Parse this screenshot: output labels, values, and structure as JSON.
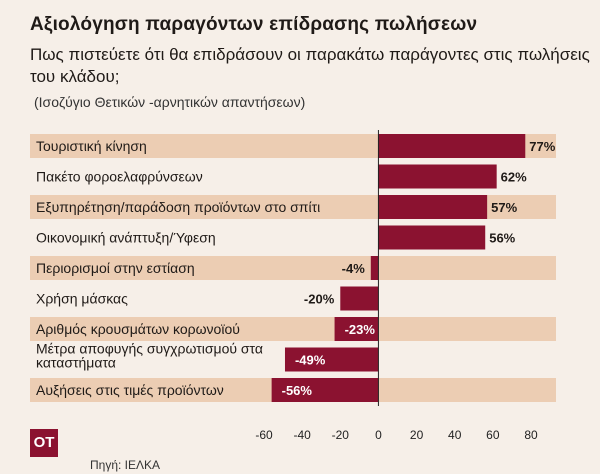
{
  "header": {
    "title": "Αξιολόγηση παραγόντων επίδρασης πωλήσεων",
    "subtitle": "Πως πιστεύετε ότι θα επιδράσουν οι παρακάτω παράγοντες στις πωλήσεις του κλάδου;",
    "note": "(Ισοζύγιο Θετικών -αρνητικών απαντήσεων)"
  },
  "footer": {
    "logo": "ΟΤ",
    "source": "Πηγή: ΙΕΛΚΑ"
  },
  "colors": {
    "bar": "#8b1230",
    "band": "#eccdb3",
    "background": "#f6efe8",
    "axis": "#222222"
  },
  "chart_data": {
    "type": "bar",
    "orientation": "horizontal",
    "categories": [
      "Τουριστική κίνηση",
      "Πακέτο φοροελαφρύνσεων",
      "Εξυπηρέτηση/παράδοση προϊόντων στο σπίτι",
      "Οικονομική ανάπτυξη/Ύφεση",
      "Περιορισμοί στην εστίαση",
      "Χρήση μάσκας",
      "Αριθμός κρουσμάτων κορωνοϊού",
      "Μέτρα αποφυγής συγχρωτισμού στα καταστήματα",
      "Αυξήσεις στις τιμές προϊόντων"
    ],
    "values": [
      77,
      62,
      57,
      56,
      -4,
      -20,
      -23,
      -49,
      -56
    ],
    "value_labels": [
      "77%",
      "62%",
      "57%",
      "56%",
      "-4%",
      "-20%",
      "-23%",
      "-49%",
      "-56%"
    ],
    "xlim": [
      -60,
      80
    ],
    "xticks": [
      -60,
      -40,
      -20,
      0,
      20,
      40,
      60,
      80
    ],
    "xlabel": "",
    "ylabel": "",
    "grid": false,
    "legend": "none"
  }
}
